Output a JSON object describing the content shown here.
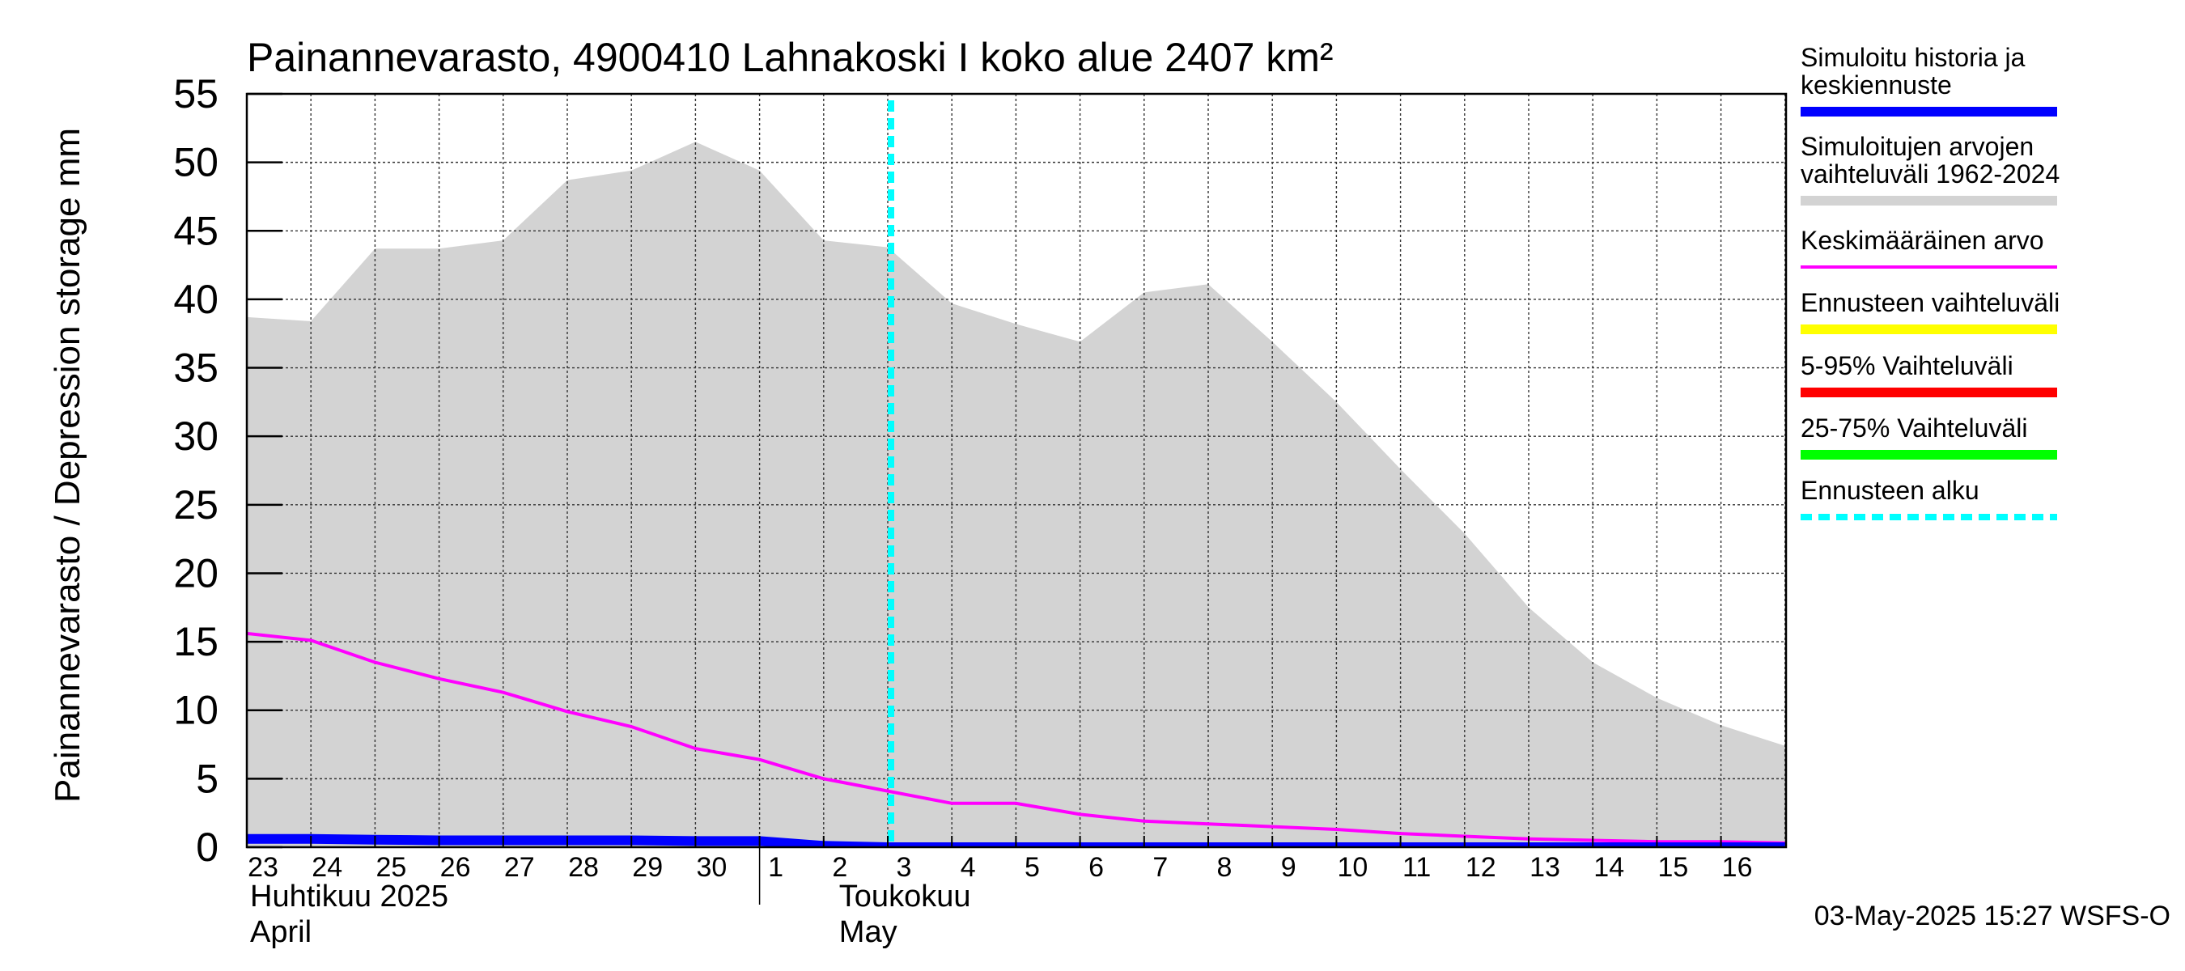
{
  "chart_data": {
    "type": "area",
    "title": "Painannevarasto, 4900410 Lahnakoski I koko alue 2407 km²",
    "ylabel": "Painannevarasto / Depression storage    mm",
    "ylim": [
      0,
      55
    ],
    "yticks": [
      0,
      5,
      10,
      15,
      20,
      25,
      30,
      35,
      40,
      45,
      50,
      55
    ],
    "grid": true,
    "legend_position": "right",
    "x_dates": [
      "2025-04-23",
      "2025-04-24",
      "2025-04-25",
      "2025-04-26",
      "2025-04-27",
      "2025-04-28",
      "2025-04-29",
      "2025-04-30",
      "2025-05-01",
      "2025-05-02",
      "2025-05-03",
      "2025-05-04",
      "2025-05-05",
      "2025-05-06",
      "2025-05-07",
      "2025-05-08",
      "2025-05-09",
      "2025-05-10",
      "2025-05-11",
      "2025-05-12",
      "2025-05-13",
      "2025-05-14",
      "2025-05-15",
      "2025-05-16",
      "2025-05-17"
    ],
    "x_tick_labels": [
      "23",
      "24",
      "25",
      "26",
      "27",
      "28",
      "29",
      "30",
      "1",
      "2",
      "3",
      "4",
      "5",
      "6",
      "7",
      "8",
      "9",
      "10",
      "11",
      "12",
      "13",
      "14",
      "15",
      "16"
    ],
    "month_labels": [
      {
        "fi": "Huhtikuu  2025",
        "en": "April",
        "start": "2025-04-23"
      },
      {
        "fi": "Toukokuu",
        "en": "May",
        "start": "2025-05-02"
      }
    ],
    "forecast_start": "2025-05-03",
    "series": [
      {
        "name": "Simuloitujen arvojen vaihteluväli 1962-2024",
        "kind": "band",
        "color": "#d3d3d3",
        "lower": [
          0,
          0,
          0,
          0,
          0,
          0,
          0,
          0,
          0,
          0,
          0,
          0,
          0,
          0,
          0,
          0,
          0,
          0,
          0,
          0,
          0,
          0,
          0,
          0,
          0
        ],
        "upper": [
          38.7,
          38.4,
          43.7,
          43.7,
          44.3,
          48.7,
          49.4,
          51.5,
          49.4,
          44.3,
          43.8,
          39.7,
          38.2,
          36.9,
          40.5,
          41.1,
          36.9,
          32.5,
          27.6,
          22.9,
          17.5,
          13.5,
          10.9,
          8.9,
          7.4
        ]
      },
      {
        "name": "Keskimääräinen arvo",
        "kind": "line",
        "color": "#ff00ff",
        "values": [
          15.6,
          15.1,
          13.5,
          12.3,
          11.3,
          9.9,
          8.8,
          7.2,
          6.4,
          5.0,
          4.1,
          3.2,
          3.2,
          2.4,
          1.9,
          1.7,
          1.5,
          1.3,
          1.0,
          0.8,
          0.6,
          0.5,
          0.4,
          0.4,
          0.3
        ]
      },
      {
        "name": "Simuloitu historia ja keskiennuste",
        "kind": "line",
        "color": "#0000ff",
        "values": [
          0.6,
          0.6,
          0.55,
          0.5,
          0.5,
          0.5,
          0.5,
          0.45,
          0.45,
          0.1,
          0.0,
          0.0,
          0.0,
          0.0,
          0.0,
          0.0,
          0.0,
          0.0,
          0.0,
          0.0,
          0.0,
          0.0,
          0.0,
          0.0,
          0.0
        ]
      }
    ],
    "legend": [
      {
        "label": "Simuloitu historia ja keskiennuste",
        "color": "#0000ff",
        "style": "thick"
      },
      {
        "label": "Simuloitujen arvojen vaihteluväli 1962-2024",
        "color": "#d3d3d3",
        "style": "thick"
      },
      {
        "label": "Keskimääräinen arvo",
        "color": "#ff00ff",
        "style": "thin"
      },
      {
        "label": "Ennusteen vaihteluväli",
        "color": "#ffff00",
        "style": "thick"
      },
      {
        "label": "5-95% Vaihteluväli",
        "color": "#ff0000",
        "style": "thick"
      },
      {
        "label": "25-75% Vaihteluväli",
        "color": "#00ff00",
        "style": "thick"
      },
      {
        "label": "Ennusteen alku",
        "color": "#00ffff",
        "style": "dashed"
      }
    ],
    "footer": "03-May-2025 15:27 WSFS-O"
  }
}
